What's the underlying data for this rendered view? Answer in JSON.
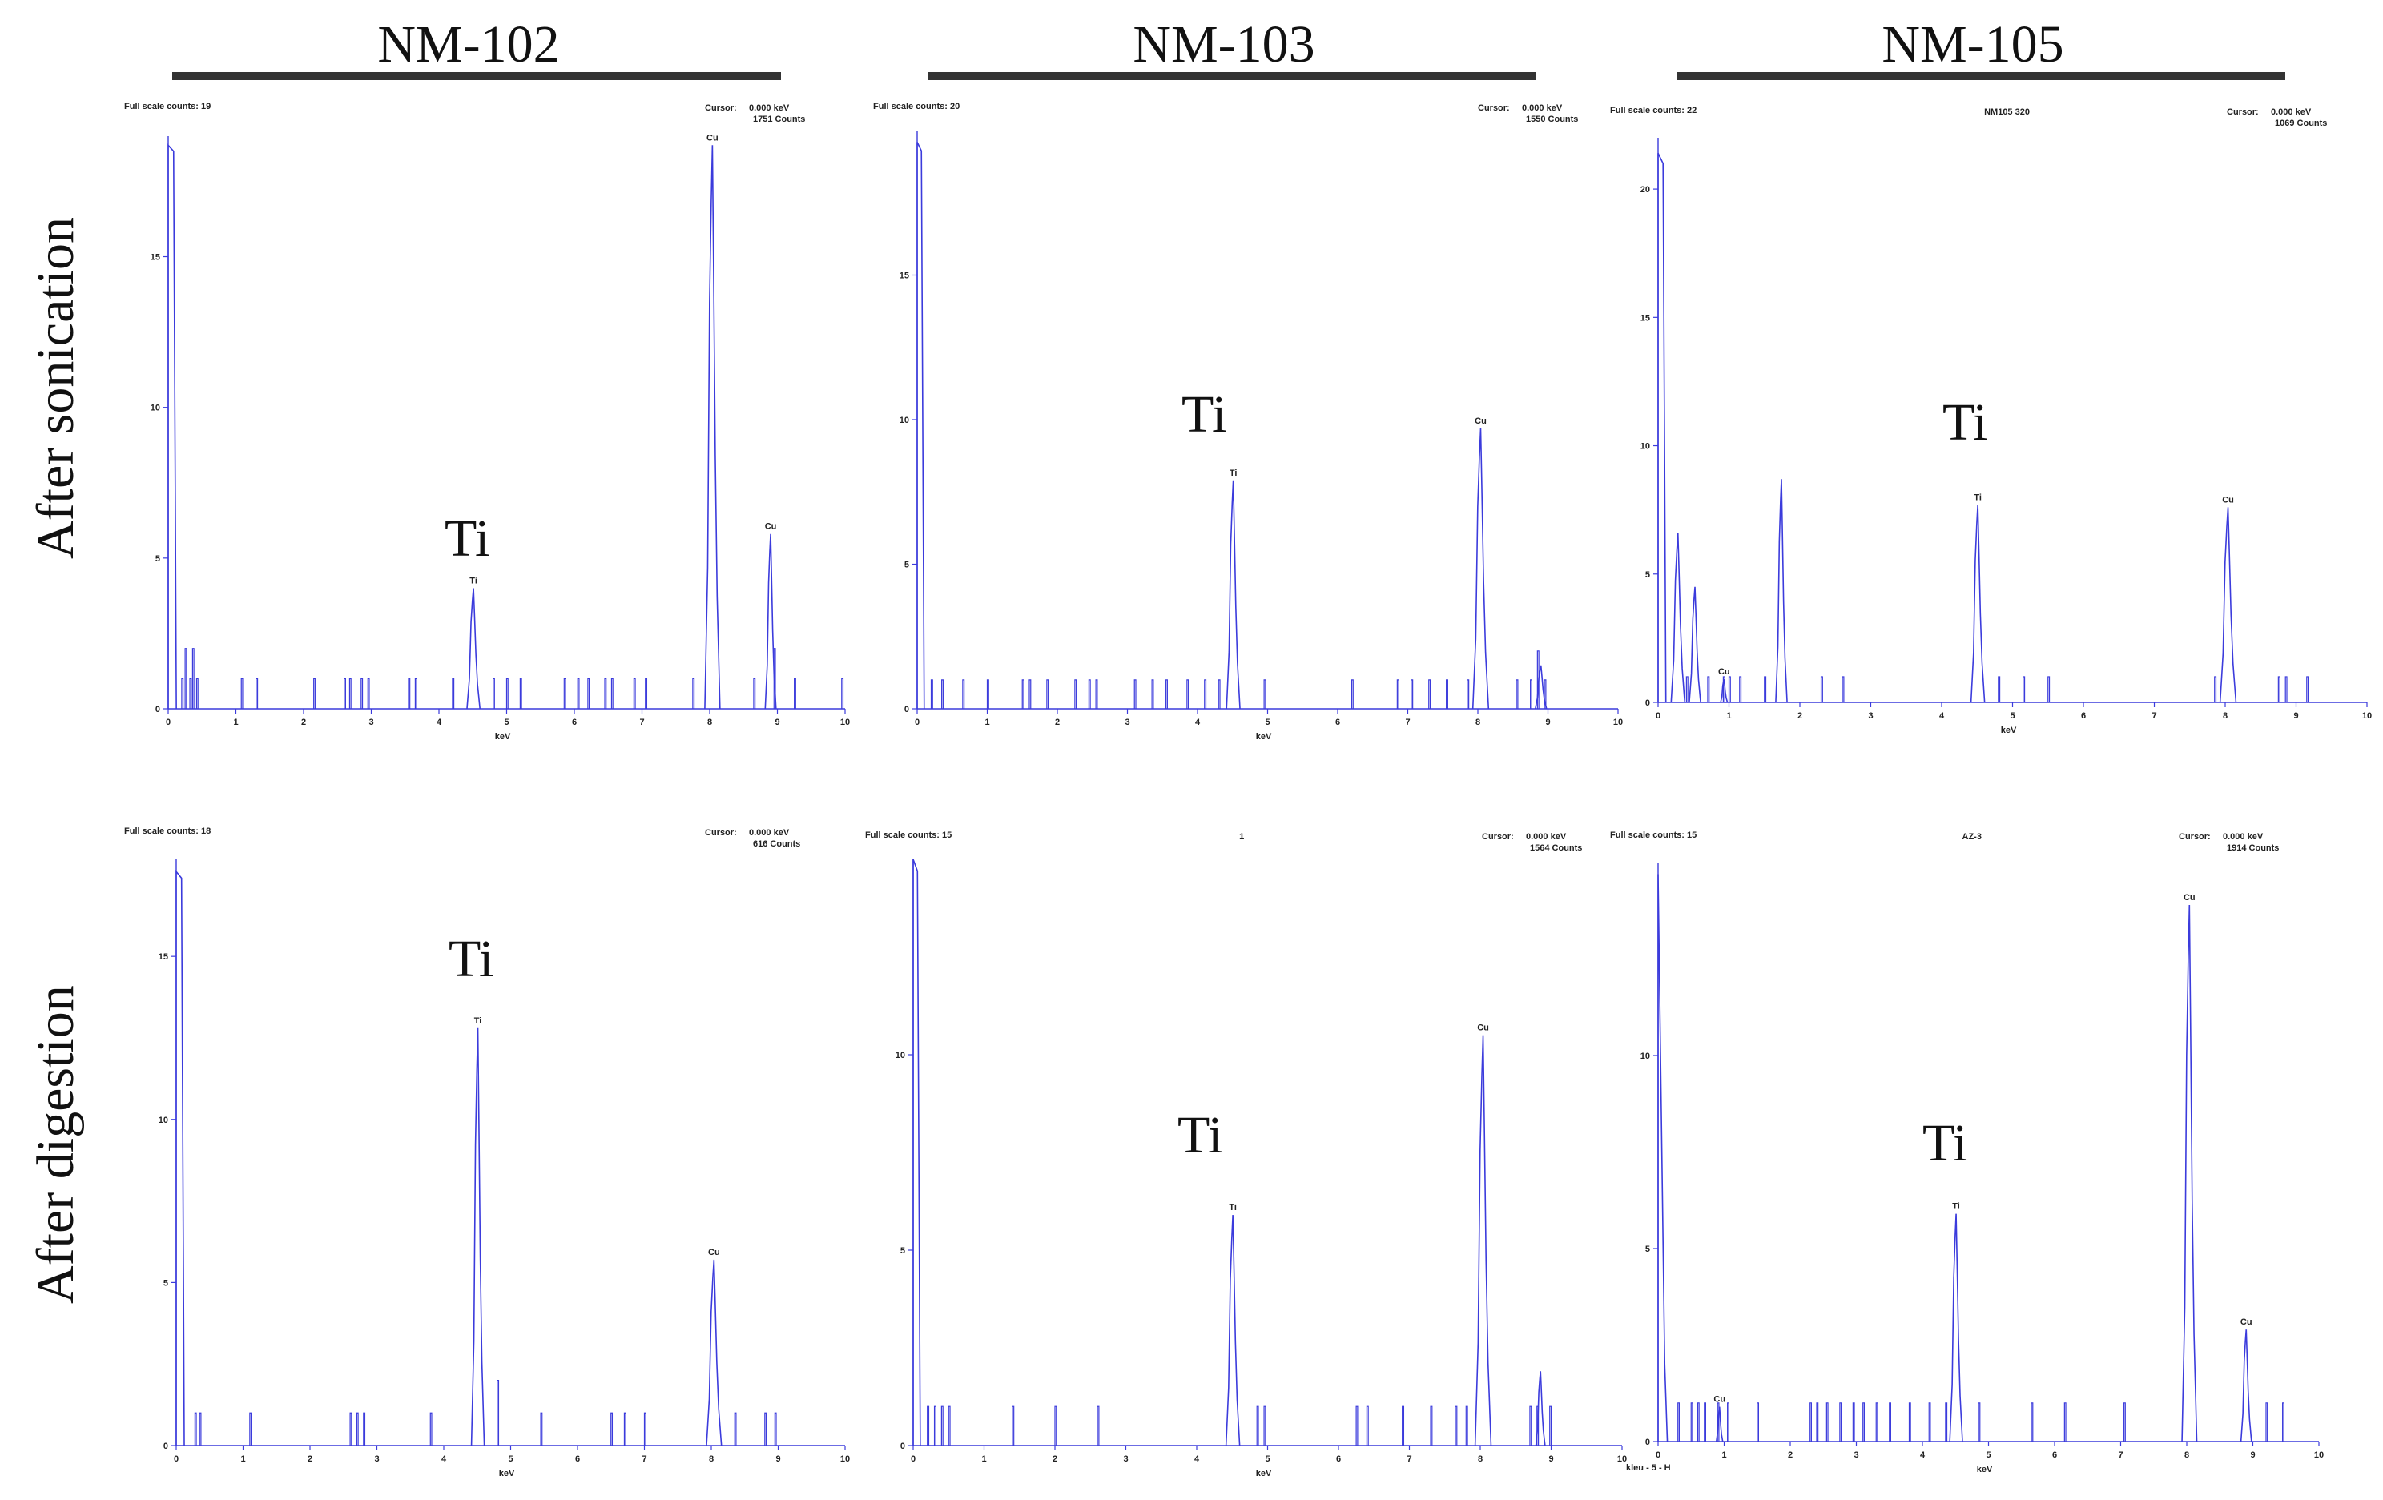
{
  "columns": [
    "NM-102",
    "NM-103",
    "NM-105"
  ],
  "rows": [
    "After sonication",
    "After digestion"
  ],
  "colors": {
    "spectrum": "#3b3bdc",
    "axis": "#3b3bdc",
    "text": "#111111"
  },
  "chart_data": [
    {
      "type": "line",
      "column": "NM-102",
      "row": "After sonication",
      "full_scale": "Full scale counts: 19",
      "cursor_label": "Cursor:",
      "cursor_value": "0.000 keV",
      "cursor_counts": "1751 Counts",
      "center_label": "",
      "bottom_left": "",
      "xlabel": "keV",
      "xlim": [
        0,
        10
      ],
      "ylim": [
        0,
        19
      ],
      "yticks": [
        0,
        5,
        10,
        15
      ],
      "big_label": "Ti",
      "background": [
        [
          0.2,
          1
        ],
        [
          0.25,
          2
        ],
        [
          0.32,
          1
        ],
        [
          0.36,
          2
        ],
        [
          0.42,
          1
        ],
        [
          1.08,
          1
        ],
        [
          1.3,
          1
        ],
        [
          2.15,
          1
        ],
        [
          2.6,
          1
        ],
        [
          2.68,
          1
        ],
        [
          2.85,
          1
        ],
        [
          2.95,
          1
        ],
        [
          3.55,
          1
        ],
        [
          3.65,
          1
        ],
        [
          4.2,
          1
        ],
        [
          4.8,
          1
        ],
        [
          5.0,
          1
        ],
        [
          5.2,
          1
        ],
        [
          5.85,
          1
        ],
        [
          6.05,
          1
        ],
        [
          6.2,
          1
        ],
        [
          6.45,
          1
        ],
        [
          6.55,
          1
        ],
        [
          6.88,
          1
        ],
        [
          7.05,
          1
        ],
        [
          7.75,
          1
        ],
        [
          8.65,
          1
        ],
        [
          8.95,
          2
        ],
        [
          9.25,
          1
        ],
        [
          9.95,
          1
        ]
      ],
      "peaks": [
        {
          "label": "Ti",
          "x": 4.51,
          "y": 4.0,
          "w": 0.06
        },
        {
          "label": "Cu",
          "x": 8.04,
          "y": 18.7,
          "w": 0.07
        },
        {
          "label": "Cu",
          "x": 8.9,
          "y": 5.8,
          "w": 0.05
        }
      ],
      "near_zero": [
        {
          "x": 0.0,
          "y": 18.7
        },
        {
          "x": 0.08,
          "y": 18.5
        }
      ]
    },
    {
      "type": "line",
      "column": "NM-103",
      "row": "After sonication",
      "full_scale": "Full scale counts: 20",
      "cursor_label": "Cursor:",
      "cursor_value": "0.000 keV",
      "cursor_counts": "1550 Counts",
      "center_label": "",
      "bottom_left": "",
      "xlabel": "keV",
      "xlim": [
        0,
        10
      ],
      "ylim": [
        0,
        20
      ],
      "yticks": [
        0,
        5,
        10,
        15
      ],
      "big_label": "Ti",
      "background": [
        [
          0.2,
          1
        ],
        [
          0.35,
          1
        ],
        [
          0.65,
          1
        ],
        [
          1.0,
          1
        ],
        [
          1.5,
          1
        ],
        [
          1.6,
          1
        ],
        [
          1.85,
          1
        ],
        [
          2.25,
          1
        ],
        [
          2.45,
          1
        ],
        [
          2.55,
          1
        ],
        [
          3.1,
          1
        ],
        [
          3.35,
          1
        ],
        [
          3.55,
          1
        ],
        [
          3.85,
          1
        ],
        [
          4.1,
          1
        ],
        [
          4.3,
          1
        ],
        [
          4.95,
          1
        ],
        [
          6.2,
          1
        ],
        [
          6.85,
          1
        ],
        [
          7.05,
          1
        ],
        [
          7.3,
          1
        ],
        [
          7.55,
          1
        ],
        [
          7.85,
          1
        ],
        [
          8.55,
          1
        ],
        [
          8.75,
          1
        ],
        [
          8.85,
          2
        ],
        [
          8.95,
          1
        ]
      ],
      "peaks": [
        {
          "label": "Ti",
          "x": 4.51,
          "y": 7.9,
          "w": 0.06
        },
        {
          "label": "Cu",
          "x": 8.04,
          "y": 9.7,
          "w": 0.07
        },
        {
          "label": "",
          "x": 8.9,
          "y": 1.5,
          "w": 0.05
        }
      ],
      "near_zero": [
        {
          "x": 0.0,
          "y": 19.6
        },
        {
          "x": 0.06,
          "y": 19.3
        }
      ]
    },
    {
      "type": "line",
      "column": "NM-105",
      "row": "After sonication",
      "full_scale": "Full scale counts: 22",
      "cursor_label": "Cursor:",
      "cursor_value": "0.000 keV",
      "cursor_counts": "1069 Counts",
      "center_label": "NM105 320",
      "bottom_left": "",
      "xlabel": "keV",
      "xlim": [
        0,
        10
      ],
      "ylim": [
        0,
        22
      ],
      "yticks": [
        0,
        5,
        10,
        15,
        20
      ],
      "big_label": "Ti",
      "background": [
        [
          0.4,
          1
        ],
        [
          0.7,
          1
        ],
        [
          0.92,
          1
        ],
        [
          1.0,
          1
        ],
        [
          1.15,
          1
        ],
        [
          1.5,
          1
        ],
        [
          2.3,
          1
        ],
        [
          2.6,
          1
        ],
        [
          4.8,
          1
        ],
        [
          5.15,
          1
        ],
        [
          5.5,
          1
        ],
        [
          7.85,
          1
        ],
        [
          8.75,
          1
        ],
        [
          8.85,
          1
        ],
        [
          9.15,
          1
        ]
      ],
      "peaks": [
        {
          "label": "",
          "x": 0.28,
          "y": 6.6,
          "w": 0.06
        },
        {
          "label": "",
          "x": 0.52,
          "y": 4.5,
          "w": 0.05
        },
        {
          "label": "Cu",
          "x": 0.93,
          "y": 0.9,
          "w": 0.03
        },
        {
          "label": "",
          "x": 1.74,
          "y": 8.7,
          "w": 0.05
        },
        {
          "label": "Ti",
          "x": 4.51,
          "y": 7.7,
          "w": 0.06
        },
        {
          "label": "Cu",
          "x": 8.04,
          "y": 7.6,
          "w": 0.07
        }
      ],
      "near_zero": [
        {
          "x": 0.0,
          "y": 21.4
        },
        {
          "x": 0.07,
          "y": 21.0
        }
      ]
    },
    {
      "type": "line",
      "column": "NM-102",
      "row": "After digestion",
      "full_scale": "Full scale counts: 18",
      "cursor_label": "Cursor:",
      "cursor_value": "0.000 keV",
      "cursor_counts": "616 Counts",
      "center_label": "",
      "bottom_left": "",
      "xlabel": "keV",
      "xlim": [
        0,
        10
      ],
      "ylim": [
        0,
        18
      ],
      "yticks": [
        0,
        5,
        10,
        15
      ],
      "big_label": "Ti",
      "background": [
        [
          0.28,
          1
        ],
        [
          0.35,
          1
        ],
        [
          1.1,
          1
        ],
        [
          2.6,
          1
        ],
        [
          2.7,
          1
        ],
        [
          2.8,
          1
        ],
        [
          3.8,
          1
        ],
        [
          4.8,
          2
        ],
        [
          5.45,
          1
        ],
        [
          6.5,
          1
        ],
        [
          6.7,
          1
        ],
        [
          7.0,
          1
        ],
        [
          8.35,
          1
        ],
        [
          8.8,
          1
        ],
        [
          8.95,
          1
        ]
      ],
      "peaks": [
        {
          "label": "Ti",
          "x": 4.51,
          "y": 12.8,
          "w": 0.06
        },
        {
          "label": "Cu",
          "x": 8.04,
          "y": 5.7,
          "w": 0.07
        }
      ],
      "near_zero": [
        {
          "x": 0.0,
          "y": 17.6
        },
        {
          "x": 0.08,
          "y": 17.4
        }
      ]
    },
    {
      "type": "line",
      "column": "NM-103",
      "row": "After digestion",
      "full_scale": "Full scale counts: 15",
      "cursor_label": "Cursor:",
      "cursor_value": "0.000 keV",
      "cursor_counts": "1564 Counts",
      "center_label": "1",
      "bottom_left": "",
      "xlabel": "keV",
      "xlim": [
        0,
        10
      ],
      "ylim": [
        0,
        15
      ],
      "yticks": [
        0,
        5,
        10
      ],
      "big_label": "Ti",
      "background": [
        [
          0.2,
          1
        ],
        [
          0.3,
          1
        ],
        [
          0.4,
          1
        ],
        [
          0.5,
          1
        ],
        [
          1.4,
          1
        ],
        [
          2.0,
          1
        ],
        [
          2.6,
          1
        ],
        [
          4.85,
          1
        ],
        [
          4.95,
          1
        ],
        [
          6.25,
          1
        ],
        [
          6.4,
          1
        ],
        [
          6.9,
          1
        ],
        [
          7.3,
          1
        ],
        [
          7.65,
          1
        ],
        [
          7.8,
          1
        ],
        [
          8.7,
          1
        ],
        [
          8.8,
          1
        ],
        [
          8.98,
          1
        ]
      ],
      "peaks": [
        {
          "label": "Ti",
          "x": 4.51,
          "y": 5.9,
          "w": 0.06
        },
        {
          "label": "Cu",
          "x": 8.04,
          "y": 10.5,
          "w": 0.07
        },
        {
          "label": "",
          "x": 8.85,
          "y": 1.9,
          "w": 0.04
        }
      ],
      "near_zero": [
        {
          "x": 0.0,
          "y": 15.0
        },
        {
          "x": 0.06,
          "y": 14.7
        }
      ]
    },
    {
      "type": "line",
      "column": "NM-105",
      "row": "After digestion",
      "full_scale": "Full scale counts: 15",
      "cursor_label": "Cursor:",
      "cursor_value": "0.000 keV",
      "cursor_counts": "1914 Counts",
      "center_label": "AZ-3",
      "bottom_left": "kleu - 5 - H",
      "xlabel": "keV",
      "xlim": [
        0,
        10
      ],
      "ylim": [
        0,
        15
      ],
      "yticks": [
        0,
        5,
        10
      ],
      "big_label": "Ti",
      "background": [
        [
          0.3,
          1
        ],
        [
          0.5,
          1
        ],
        [
          0.6,
          1
        ],
        [
          0.7,
          1
        ],
        [
          0.9,
          1
        ],
        [
          1.05,
          1
        ],
        [
          1.5,
          1
        ],
        [
          2.3,
          1
        ],
        [
          2.4,
          1
        ],
        [
          2.55,
          1
        ],
        [
          2.75,
          1
        ],
        [
          2.95,
          1
        ],
        [
          3.1,
          1
        ],
        [
          3.3,
          1
        ],
        [
          3.5,
          1
        ],
        [
          3.8,
          1
        ],
        [
          4.1,
          1
        ],
        [
          4.35,
          1
        ],
        [
          4.85,
          1
        ],
        [
          5.65,
          1
        ],
        [
          6.15,
          1
        ],
        [
          7.05,
          1
        ],
        [
          9.2,
          1
        ],
        [
          9.45,
          1
        ]
      ],
      "peaks": [
        {
          "label": "Cu",
          "x": 0.93,
          "y": 0.9,
          "w": 0.03
        },
        {
          "label": "Ti",
          "x": 4.51,
          "y": 5.9,
          "w": 0.06
        },
        {
          "label": "Cu",
          "x": 8.04,
          "y": 13.9,
          "w": 0.07
        },
        {
          "label": "Cu",
          "x": 8.9,
          "y": 2.9,
          "w": 0.05
        }
      ],
      "near_zero": [
        {
          "x": 0.0,
          "y": 14.7
        },
        {
          "x": 0.1,
          "y": 2.0
        }
      ]
    }
  ]
}
